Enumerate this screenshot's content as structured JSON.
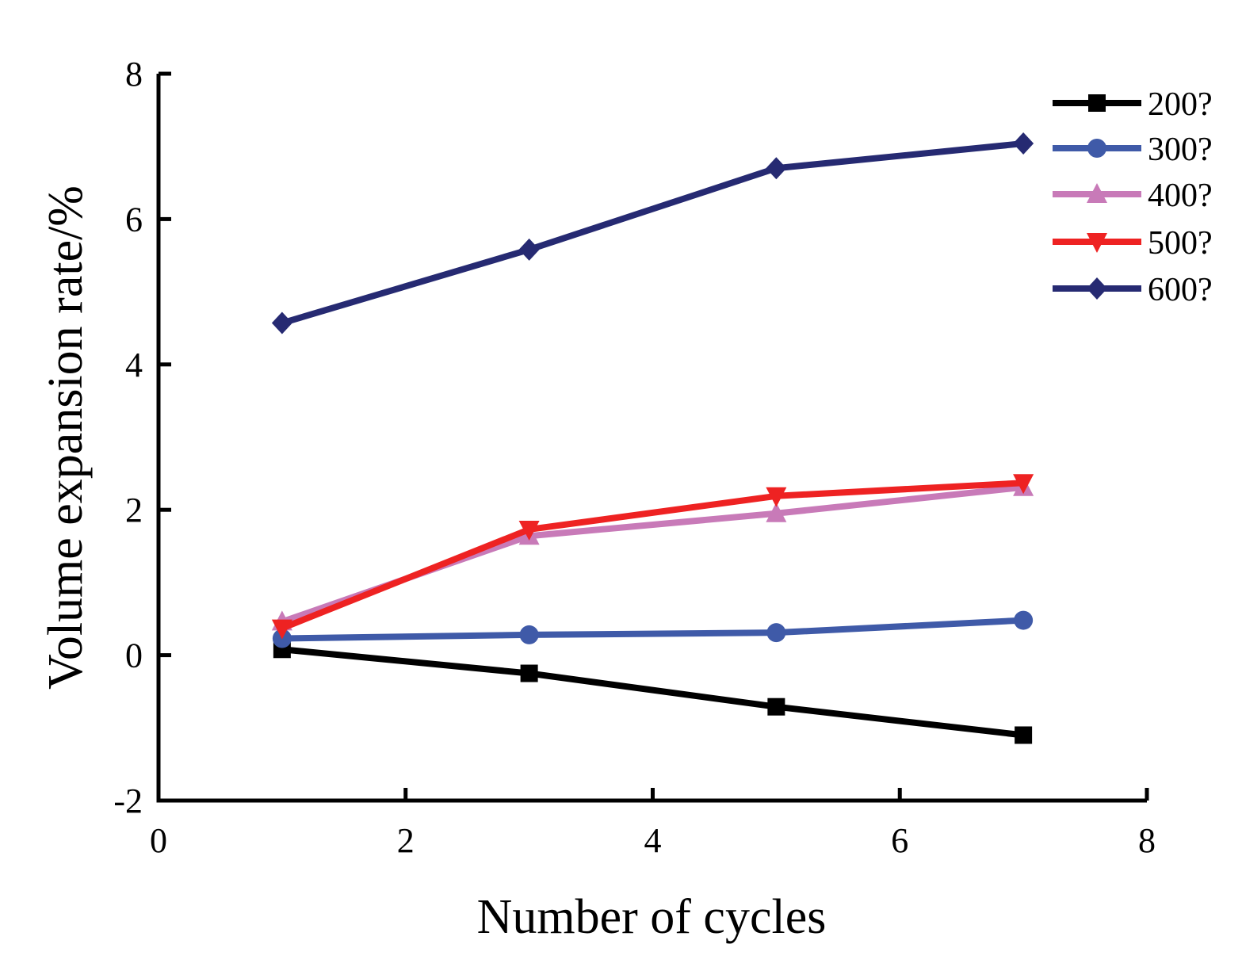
{
  "chart_data": {
    "type": "line",
    "title": "",
    "xlabel": "Number of cycles",
    "ylabel": "Volume expansion rate/%",
    "xlim": [
      0,
      8
    ],
    "ylim": [
      -2,
      8
    ],
    "xticks": [
      "0",
      "2",
      "4",
      "6",
      "8"
    ],
    "yticks": [
      "-2",
      "0",
      "2",
      "4",
      "6",
      "8"
    ],
    "grid": false,
    "legend_position": "top-right",
    "x": [
      1,
      3,
      5,
      7
    ],
    "series": [
      {
        "name": "200?",
        "color": "#000000",
        "marker": "square",
        "values": [
          0.08,
          -0.25,
          -0.71,
          -1.1
        ]
      },
      {
        "name": "300?",
        "color": "#3f5aa8",
        "marker": "circle",
        "values": [
          0.23,
          0.28,
          0.31,
          0.48
        ]
      },
      {
        "name": "400?",
        "color": "#c87ab8",
        "marker": "triangle-up",
        "values": [
          0.46,
          1.64,
          1.95,
          2.31
        ]
      },
      {
        "name": "500?",
        "color": "#ee2222",
        "marker": "triangle-down",
        "values": [
          0.37,
          1.73,
          2.19,
          2.37
        ]
      },
      {
        "name": "600?",
        "color": "#262a72",
        "marker": "diamond",
        "values": [
          4.57,
          5.58,
          6.7,
          7.04
        ]
      }
    ]
  }
}
